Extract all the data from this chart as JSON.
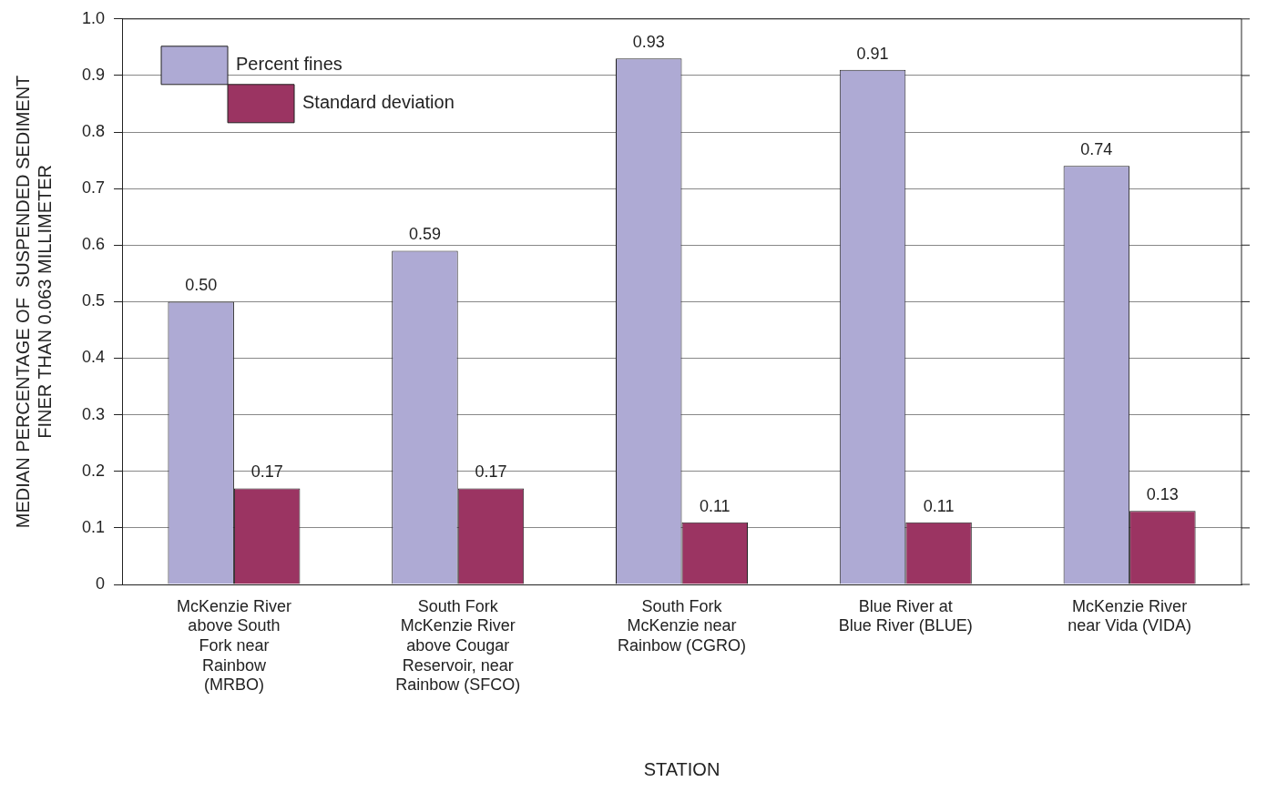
{
  "chart_data": {
    "type": "bar",
    "xlabel": "STATION",
    "ylabel": "MEDIAN PERCENTAGE OF  SUSPENDED SEDIMENT\nFINER THAN 0.063 MILLIMETER",
    "categories": [
      "McKenzie River\nabove South\nFork near\nRainbow\n(MRBO)",
      "South Fork\nMcKenzie River\nabove Cougar\nReservoir, near\nRainbow (SFCO)",
      "South Fork\nMcKenzie near\nRainbow (CGRO)",
      "Blue River at\nBlue River (BLUE)",
      "McKenzie River\nnear Vida (VIDA)"
    ],
    "series": [
      {
        "name": "Percent fines",
        "color": "#aeaad4",
        "values": [
          0.5,
          0.59,
          0.93,
          0.91,
          0.74
        ],
        "value_labels": [
          "0.50",
          "0.59",
          "0.93",
          "0.91",
          "0.74"
        ]
      },
      {
        "name": "Standard deviation",
        "color": "#9b3462",
        "values": [
          0.17,
          0.17,
          0.11,
          0.11,
          0.13
        ],
        "value_labels": [
          "0.17",
          "0.17",
          "0.11",
          "0.11",
          "0.13"
        ]
      }
    ],
    "ylim": [
      0,
      1
    ],
    "yticks": [
      0,
      0.1,
      0.2,
      0.3,
      0.4,
      0.5,
      0.6,
      0.7,
      0.8,
      0.9,
      {
        "value": 1,
        "label": "1.0"
      }
    ],
    "grid": "y",
    "legend": "top left"
  }
}
